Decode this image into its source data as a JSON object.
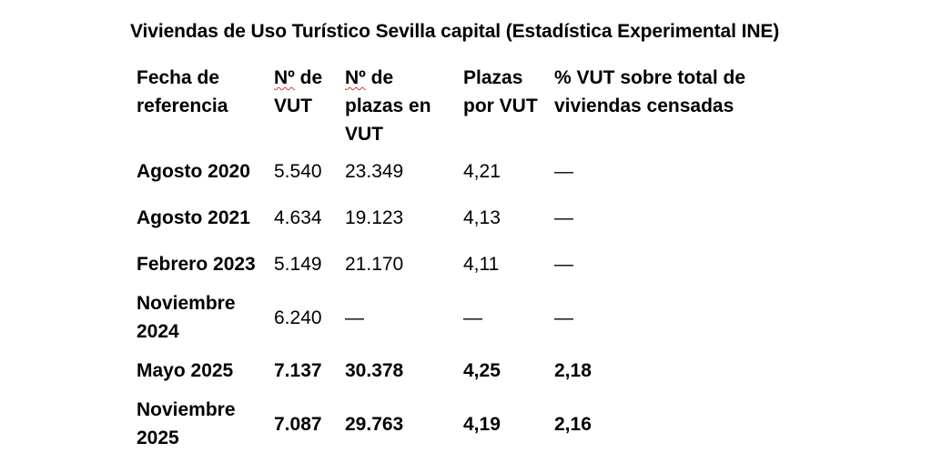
{
  "title": "Viviendas de Uso Turístico Sevilla capital (Estadística Experimental INE)",
  "headers": {
    "fecha": "Fecha de referencia",
    "num_prefix": "Nº",
    "num_suffix": " de VUT",
    "plazas_prefix": "Nº",
    "plazas_suffix": " de plazas en VUT",
    "plazas_por": "Plazas por VUT",
    "porcentaje": "% VUT sobre total de viviendas censadas"
  },
  "rows": [
    {
      "fecha": "Agosto 2020",
      "num": "5.540",
      "plazas": "23.349",
      "por": "4,21",
      "pct": "—"
    },
    {
      "fecha": "Agosto 2021",
      "num": "4.634",
      "plazas": "19.123",
      "por": "4,13",
      "pct": "—"
    },
    {
      "fecha": "Febrero 2023",
      "num": "5.149",
      "plazas": "21.170",
      "por": "4,11",
      "pct": "—"
    },
    {
      "fecha": "Noviembre 2024",
      "num": "6.240",
      "plazas": "—",
      "por": "—",
      "pct": "—"
    },
    {
      "fecha": "Mayo 2025",
      "num": "7.137",
      "plazas": "30.378",
      "por": "4,25",
      "pct": "2,18"
    },
    {
      "fecha": "Noviembre 2025",
      "num": "7.087",
      "plazas": "29.763",
      "por": "4,19",
      "pct": "2,16"
    }
  ]
}
